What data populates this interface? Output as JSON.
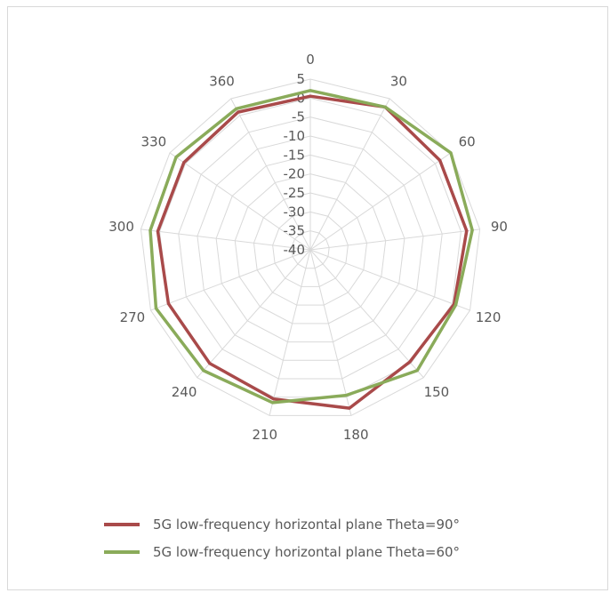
{
  "chart_data": {
    "type": "radar",
    "title": "",
    "categories": [
      "0",
      "30",
      "60",
      "90",
      "120",
      "150",
      "180",
      "210",
      "240",
      "270",
      "300",
      "330",
      "360"
    ],
    "radial_ticks": [
      "5",
      "0",
      "-5",
      "-10",
      "-15",
      "-20",
      "-25",
      "-30",
      "-35",
      "-40"
    ],
    "rlim": [
      -40,
      5
    ],
    "grid": true,
    "legend": "bottom",
    "series": [
      {
        "name": "5G low-frequency horizontal plane Theta=90°",
        "color": "#a94a4a",
        "values": [
          0.5,
          2.5,
          1.5,
          1.5,
          0.5,
          -0.5,
          3,
          0.5,
          0,
          0,
          0.5,
          0.5,
          1
        ]
      },
      {
        "name": "5G low-frequency horizontal plane Theta=60°",
        "color": "#8aab5a",
        "values": [
          2,
          2.5,
          5,
          3,
          1,
          2.5,
          -0.5,
          1.5,
          2.5,
          3.5,
          2.5,
          3,
          2
        ]
      }
    ]
  }
}
